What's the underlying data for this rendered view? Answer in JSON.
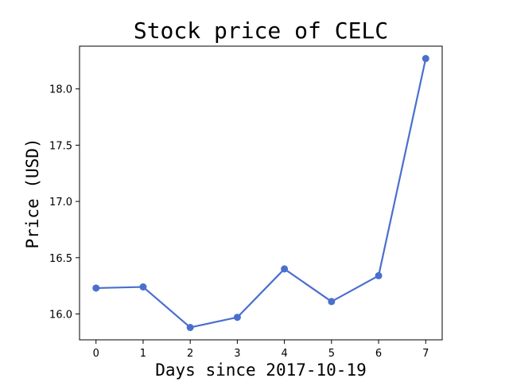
{
  "chart_data": {
    "type": "line",
    "title": "Stock price of CELC",
    "xlabel": "Days since 2017-10-19",
    "ylabel": "Price (USD)",
    "x": [
      0,
      1,
      2,
      3,
      4,
      5,
      6,
      7
    ],
    "xticks": [
      0,
      1,
      2,
      3,
      4,
      5,
      6,
      7
    ],
    "yticks": [
      16.0,
      16.5,
      17.0,
      17.5,
      18.0
    ],
    "xlim": [
      -0.35,
      7.35
    ],
    "ylim": [
      15.77,
      18.38
    ],
    "series": [
      {
        "values": [
          16.23,
          16.24,
          15.88,
          15.97,
          16.4,
          16.11,
          16.34,
          18.27
        ],
        "color": "#4a6fce",
        "marker": "circle"
      }
    ],
    "grid": false,
    "legend": "none"
  }
}
